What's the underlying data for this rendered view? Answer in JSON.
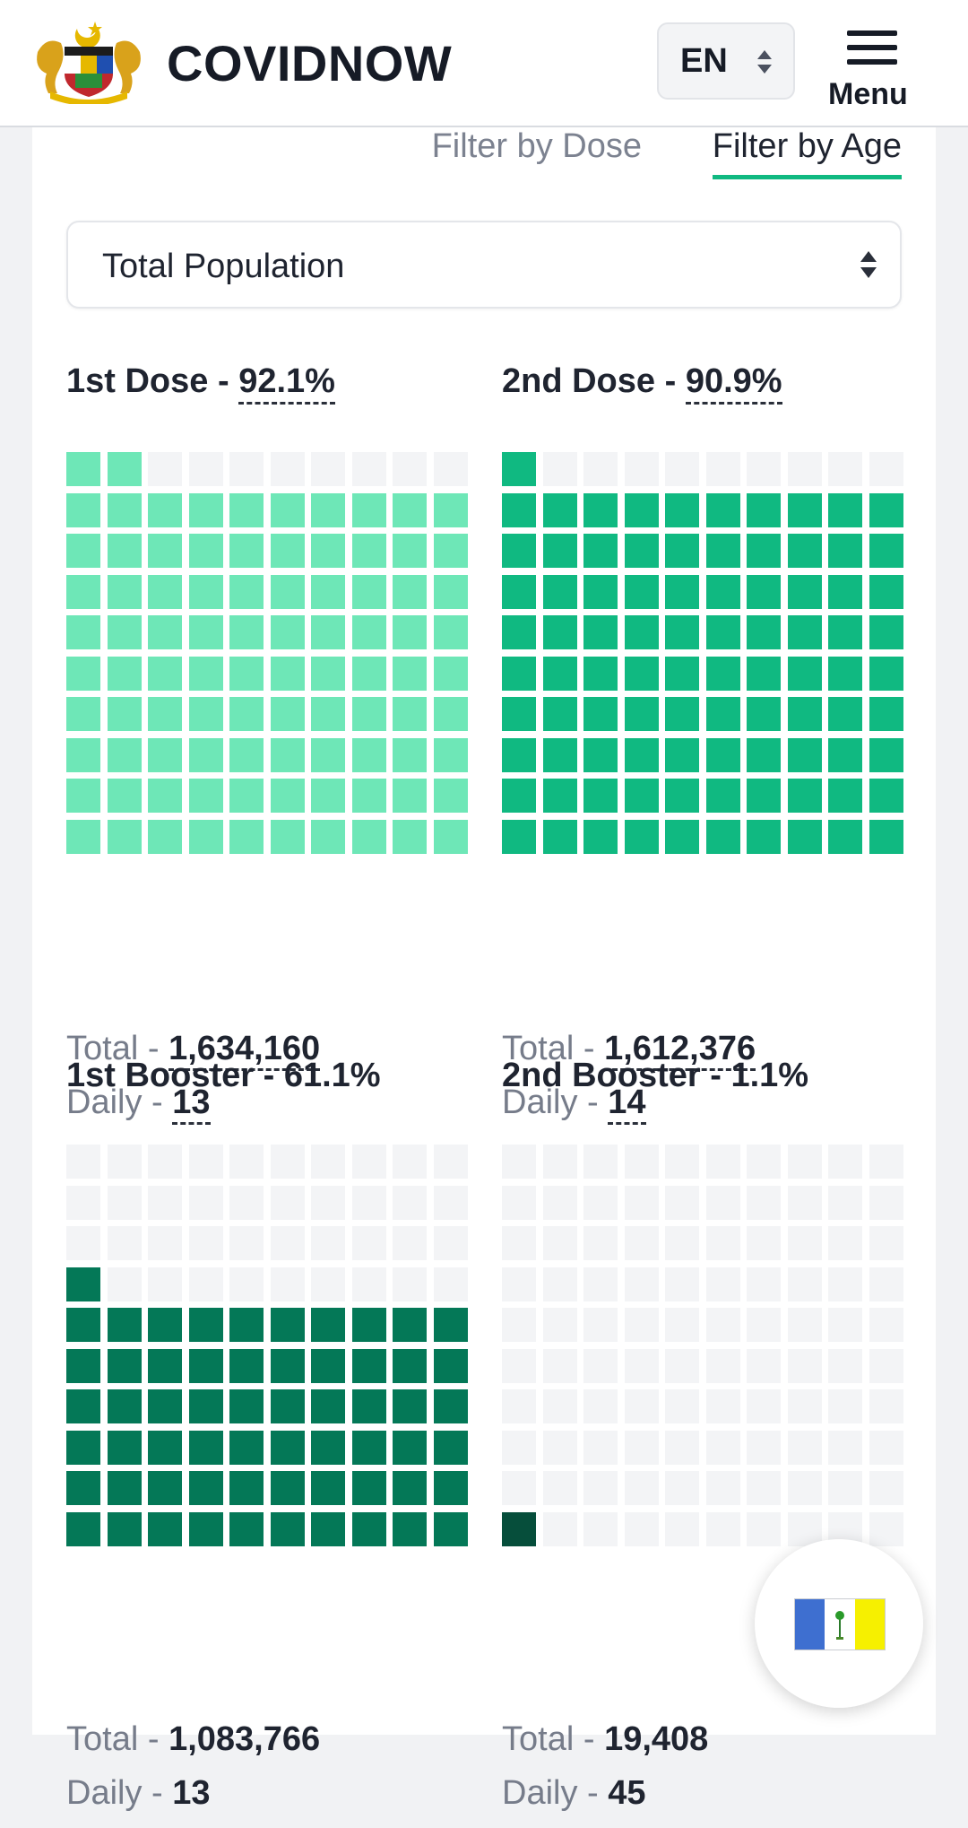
{
  "header": {
    "brand": "COVIDNOW",
    "lang": "EN",
    "menu_label": "Menu",
    "logo_icon": "malaysia-coat-of-arms"
  },
  "tabs": [
    {
      "label": "Filter by Dose",
      "active": false
    },
    {
      "label": "Filter by Age",
      "active": true
    }
  ],
  "filter": {
    "selected": "Total Population"
  },
  "panels": [
    {
      "title": "1st Dose",
      "sep": " - ",
      "pct": "92.1%",
      "fill_fraction": 0.921,
      "color": "#6ee7b7",
      "total_label": "Total",
      "total": "1,634,160",
      "daily_label": "Daily",
      "daily": "13"
    },
    {
      "title": "2nd Dose",
      "sep": " - ",
      "pct": "90.9%",
      "fill_fraction": 0.909,
      "color": "#10b981",
      "total_label": "Total",
      "total": "1,612,376",
      "daily_label": "Daily",
      "daily": "14"
    },
    {
      "title": "1st Booster",
      "sep": " - ",
      "pct": "61.1%",
      "fill_fraction": 0.611,
      "color": "#047857",
      "total_label": "Total",
      "total": "1,083,766",
      "daily_label": "Daily",
      "daily": "13"
    },
    {
      "title": "2nd Booster",
      "sep": " - ",
      "pct": "1.1%",
      "fill_fraction": 0.011,
      "color": "#064e3b",
      "total_label": "Total",
      "total": "19,408",
      "daily_label": "Daily",
      "daily": "45"
    }
  ],
  "colors": {
    "empty_cell": "#f3f4f6",
    "accent": "#10b981"
  },
  "state_button": {
    "icon": "penang-flag-icon"
  }
}
